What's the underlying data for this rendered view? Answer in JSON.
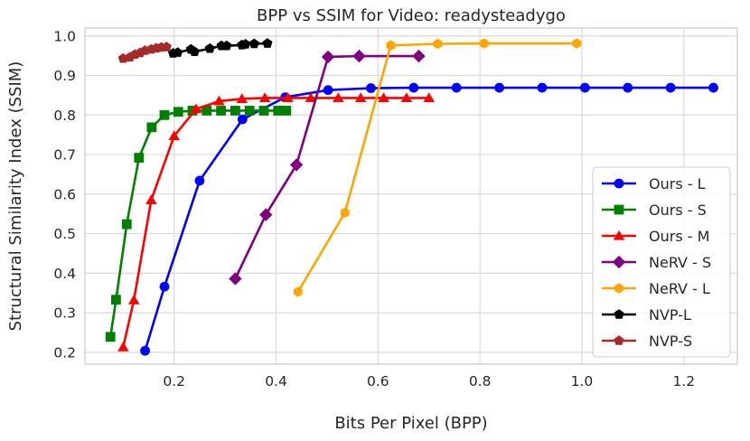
{
  "chart_data": {
    "type": "line",
    "title": "BPP vs SSIM for Video: readysteadygo",
    "xlabel": "Bits Per Pixel (BPP)",
    "ylabel": "Structural Similarity Index (SSIM)",
    "xlim": [
      0.025,
      1.305
    ],
    "ylim": [
      0.17,
      1.02
    ],
    "xticks": [
      0.2,
      0.4,
      0.6,
      0.8,
      1.0,
      1.2
    ],
    "xtick_labels": [
      "0.2",
      "0.4",
      "0.6",
      "0.8",
      "1.0",
      "1.2"
    ],
    "yticks": [
      0.2,
      0.3,
      0.4,
      0.5,
      0.6,
      0.7,
      0.8,
      0.9,
      1.0
    ],
    "ytick_labels": [
      "0.2",
      "0.3",
      "0.4",
      "0.5",
      "0.6",
      "0.7",
      "0.8",
      "0.9",
      "1.0"
    ],
    "grid": true,
    "legend_position": "right",
    "series": [
      {
        "name": "Ours - L",
        "color": "#0000ff",
        "marker": "circle",
        "x": [
          0.143,
          0.181,
          0.25,
          0.334,
          0.418,
          0.502,
          0.586,
          0.67,
          0.754,
          0.838,
          0.922,
          1.006,
          1.09,
          1.174,
          1.258
        ],
        "y": [
          0.204,
          0.366,
          0.634,
          0.789,
          0.845,
          0.863,
          0.868,
          0.869,
          0.869,
          0.869,
          0.869,
          0.869,
          0.869,
          0.869,
          0.869
        ]
      },
      {
        "name": "Ours - S",
        "color": "#008000",
        "marker": "square",
        "x": [
          0.075,
          0.086,
          0.107,
          0.131,
          0.156,
          0.181,
          0.208,
          0.236,
          0.264,
          0.292,
          0.32,
          0.348,
          0.376,
          0.404,
          0.42
        ],
        "y": [
          0.239,
          0.333,
          0.524,
          0.692,
          0.769,
          0.8,
          0.808,
          0.811,
          0.811,
          0.811,
          0.811,
          0.811,
          0.811,
          0.811,
          0.811
        ]
      },
      {
        "name": "Ours - M",
        "color": "#ff0000",
        "marker": "triangle",
        "x": [
          0.1,
          0.121,
          0.155,
          0.2,
          0.243,
          0.288,
          0.333,
          0.378,
          0.423,
          0.468,
          0.522,
          0.566,
          0.611,
          0.656,
          0.7
        ],
        "y": [
          0.213,
          0.332,
          0.585,
          0.747,
          0.815,
          0.835,
          0.841,
          0.843,
          0.843,
          0.843,
          0.843,
          0.843,
          0.843,
          0.843,
          0.843
        ]
      },
      {
        "name": "NeRV - S",
        "color": "#800080",
        "marker": "diamond",
        "x": [
          0.32,
          0.38,
          0.44,
          0.502,
          0.563,
          0.68
        ],
        "y": [
          0.386,
          0.548,
          0.674,
          0.947,
          0.949,
          0.949
        ]
      },
      {
        "name": "NeRV - L",
        "color": "#ffa500",
        "marker": "hexagon",
        "x": [
          0.443,
          0.535,
          0.625,
          0.717,
          0.808,
          0.99
        ],
        "y": [
          0.353,
          0.553,
          0.976,
          0.98,
          0.981,
          0.981
        ]
      },
      {
        "name": "NVP-L",
        "color": "#000000",
        "marker": "pentagon",
        "x": [
          0.198,
          0.207,
          0.233,
          0.24,
          0.27,
          0.293,
          0.303,
          0.333,
          0.34,
          0.357,
          0.383
        ],
        "y": [
          0.956,
          0.958,
          0.966,
          0.96,
          0.968,
          0.975,
          0.975,
          0.977,
          0.979,
          0.98,
          0.981
        ]
      },
      {
        "name": "NVP-S",
        "color": "#a52a2a",
        "marker": "pentagon",
        "x": [
          0.1,
          0.113,
          0.123,
          0.133,
          0.143,
          0.155,
          0.165,
          0.175,
          0.185
        ],
        "y": [
          0.943,
          0.946,
          0.953,
          0.957,
          0.963,
          0.966,
          0.969,
          0.971,
          0.972
        ]
      }
    ]
  }
}
